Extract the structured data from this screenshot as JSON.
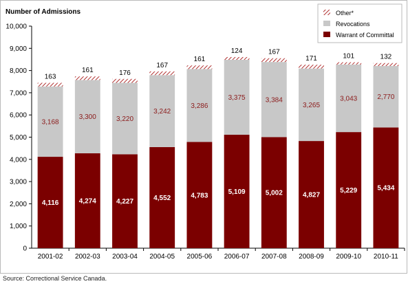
{
  "chart_data": {
    "type": "bar",
    "stacked": true,
    "ylabel": "Number of Admissions",
    "ylim": [
      0,
      10000
    ],
    "yticks": [
      "0",
      "1,000",
      "2,000",
      "3,000",
      "4,000",
      "5,000",
      "6,000",
      "7,000",
      "8,000",
      "9,000",
      "10,000"
    ],
    "categories": [
      "2001-02",
      "2002-03",
      "2003-04",
      "2004-05",
      "2005-06",
      "2006-07",
      "2007-08",
      "2008-09",
      "2009-10",
      "2010-11"
    ],
    "series": [
      {
        "name": "Warrant of Committal",
        "color": "#7b0000",
        "values": [
          4116,
          4274,
          4227,
          4552,
          4783,
          5109,
          5002,
          4827,
          5229,
          5434
        ],
        "labels": [
          "4,116",
          "4,274",
          "4,227",
          "4,552",
          "4,783",
          "5,109",
          "5,002",
          "4,827",
          "5,229",
          "5,434"
        ]
      },
      {
        "name": "Revocations",
        "color": "#c8c8c8",
        "values": [
          3168,
          3300,
          3220,
          3242,
          3286,
          3375,
          3384,
          3265,
          3043,
          2770
        ],
        "labels": [
          "3,168",
          "3,300",
          "3,220",
          "3,242",
          "3,286",
          "3,375",
          "3,384",
          "3,265",
          "3,043",
          "2,770"
        ]
      },
      {
        "name": "Other*",
        "color": "#b03030",
        "pattern": "diagonal-hatch",
        "values": [
          163,
          161,
          176,
          167,
          161,
          124,
          167,
          171,
          101,
          132
        ],
        "labels": [
          "163",
          "161",
          "176",
          "167",
          "161",
          "124",
          "167",
          "171",
          "101",
          "132"
        ]
      }
    ],
    "legend_position": "top-right",
    "grid": false
  },
  "source_note": "Source: Correctional Service Canada."
}
